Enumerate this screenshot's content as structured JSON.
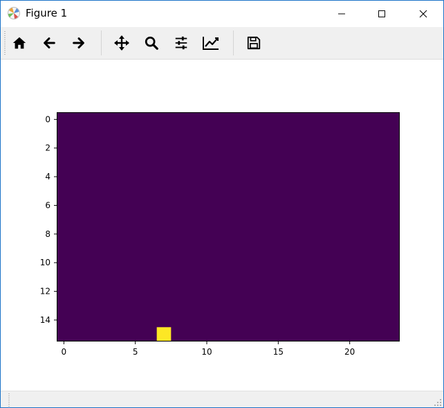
{
  "window": {
    "title": "Figure 1",
    "controls": {
      "minimize": "minimize",
      "maximize": "maximize",
      "close": "close"
    }
  },
  "toolbar": {
    "buttons": [
      {
        "name": "home",
        "icon": "home-icon"
      },
      {
        "name": "back",
        "icon": "arrow-left-icon"
      },
      {
        "name": "forward",
        "icon": "arrow-right-icon"
      },
      {
        "name": "pan",
        "icon": "move-icon"
      },
      {
        "name": "zoom",
        "icon": "magnifier-icon"
      },
      {
        "name": "configure-subplots",
        "icon": "sliders-icon"
      },
      {
        "name": "edit-axes",
        "icon": "line-chart-icon"
      },
      {
        "name": "save",
        "icon": "floppy-disk-icon"
      }
    ]
  },
  "chart_data": {
    "type": "heatmap",
    "rows": 16,
    "cols": 24,
    "background_color": "#440154",
    "highlight_color": "#fde725",
    "background_value": 0,
    "cells": [
      {
        "row": 15,
        "col": 7,
        "value": 1
      }
    ],
    "xlim": [
      -0.5,
      23.5
    ],
    "ylim": [
      15.5,
      -0.5
    ],
    "x_ticks": [
      "0",
      "5",
      "10",
      "15",
      "20"
    ],
    "y_ticks": [
      "0",
      "2",
      "4",
      "6",
      "8",
      "10",
      "12",
      "14"
    ],
    "grid": false
  },
  "statusbar": {
    "text": ""
  }
}
